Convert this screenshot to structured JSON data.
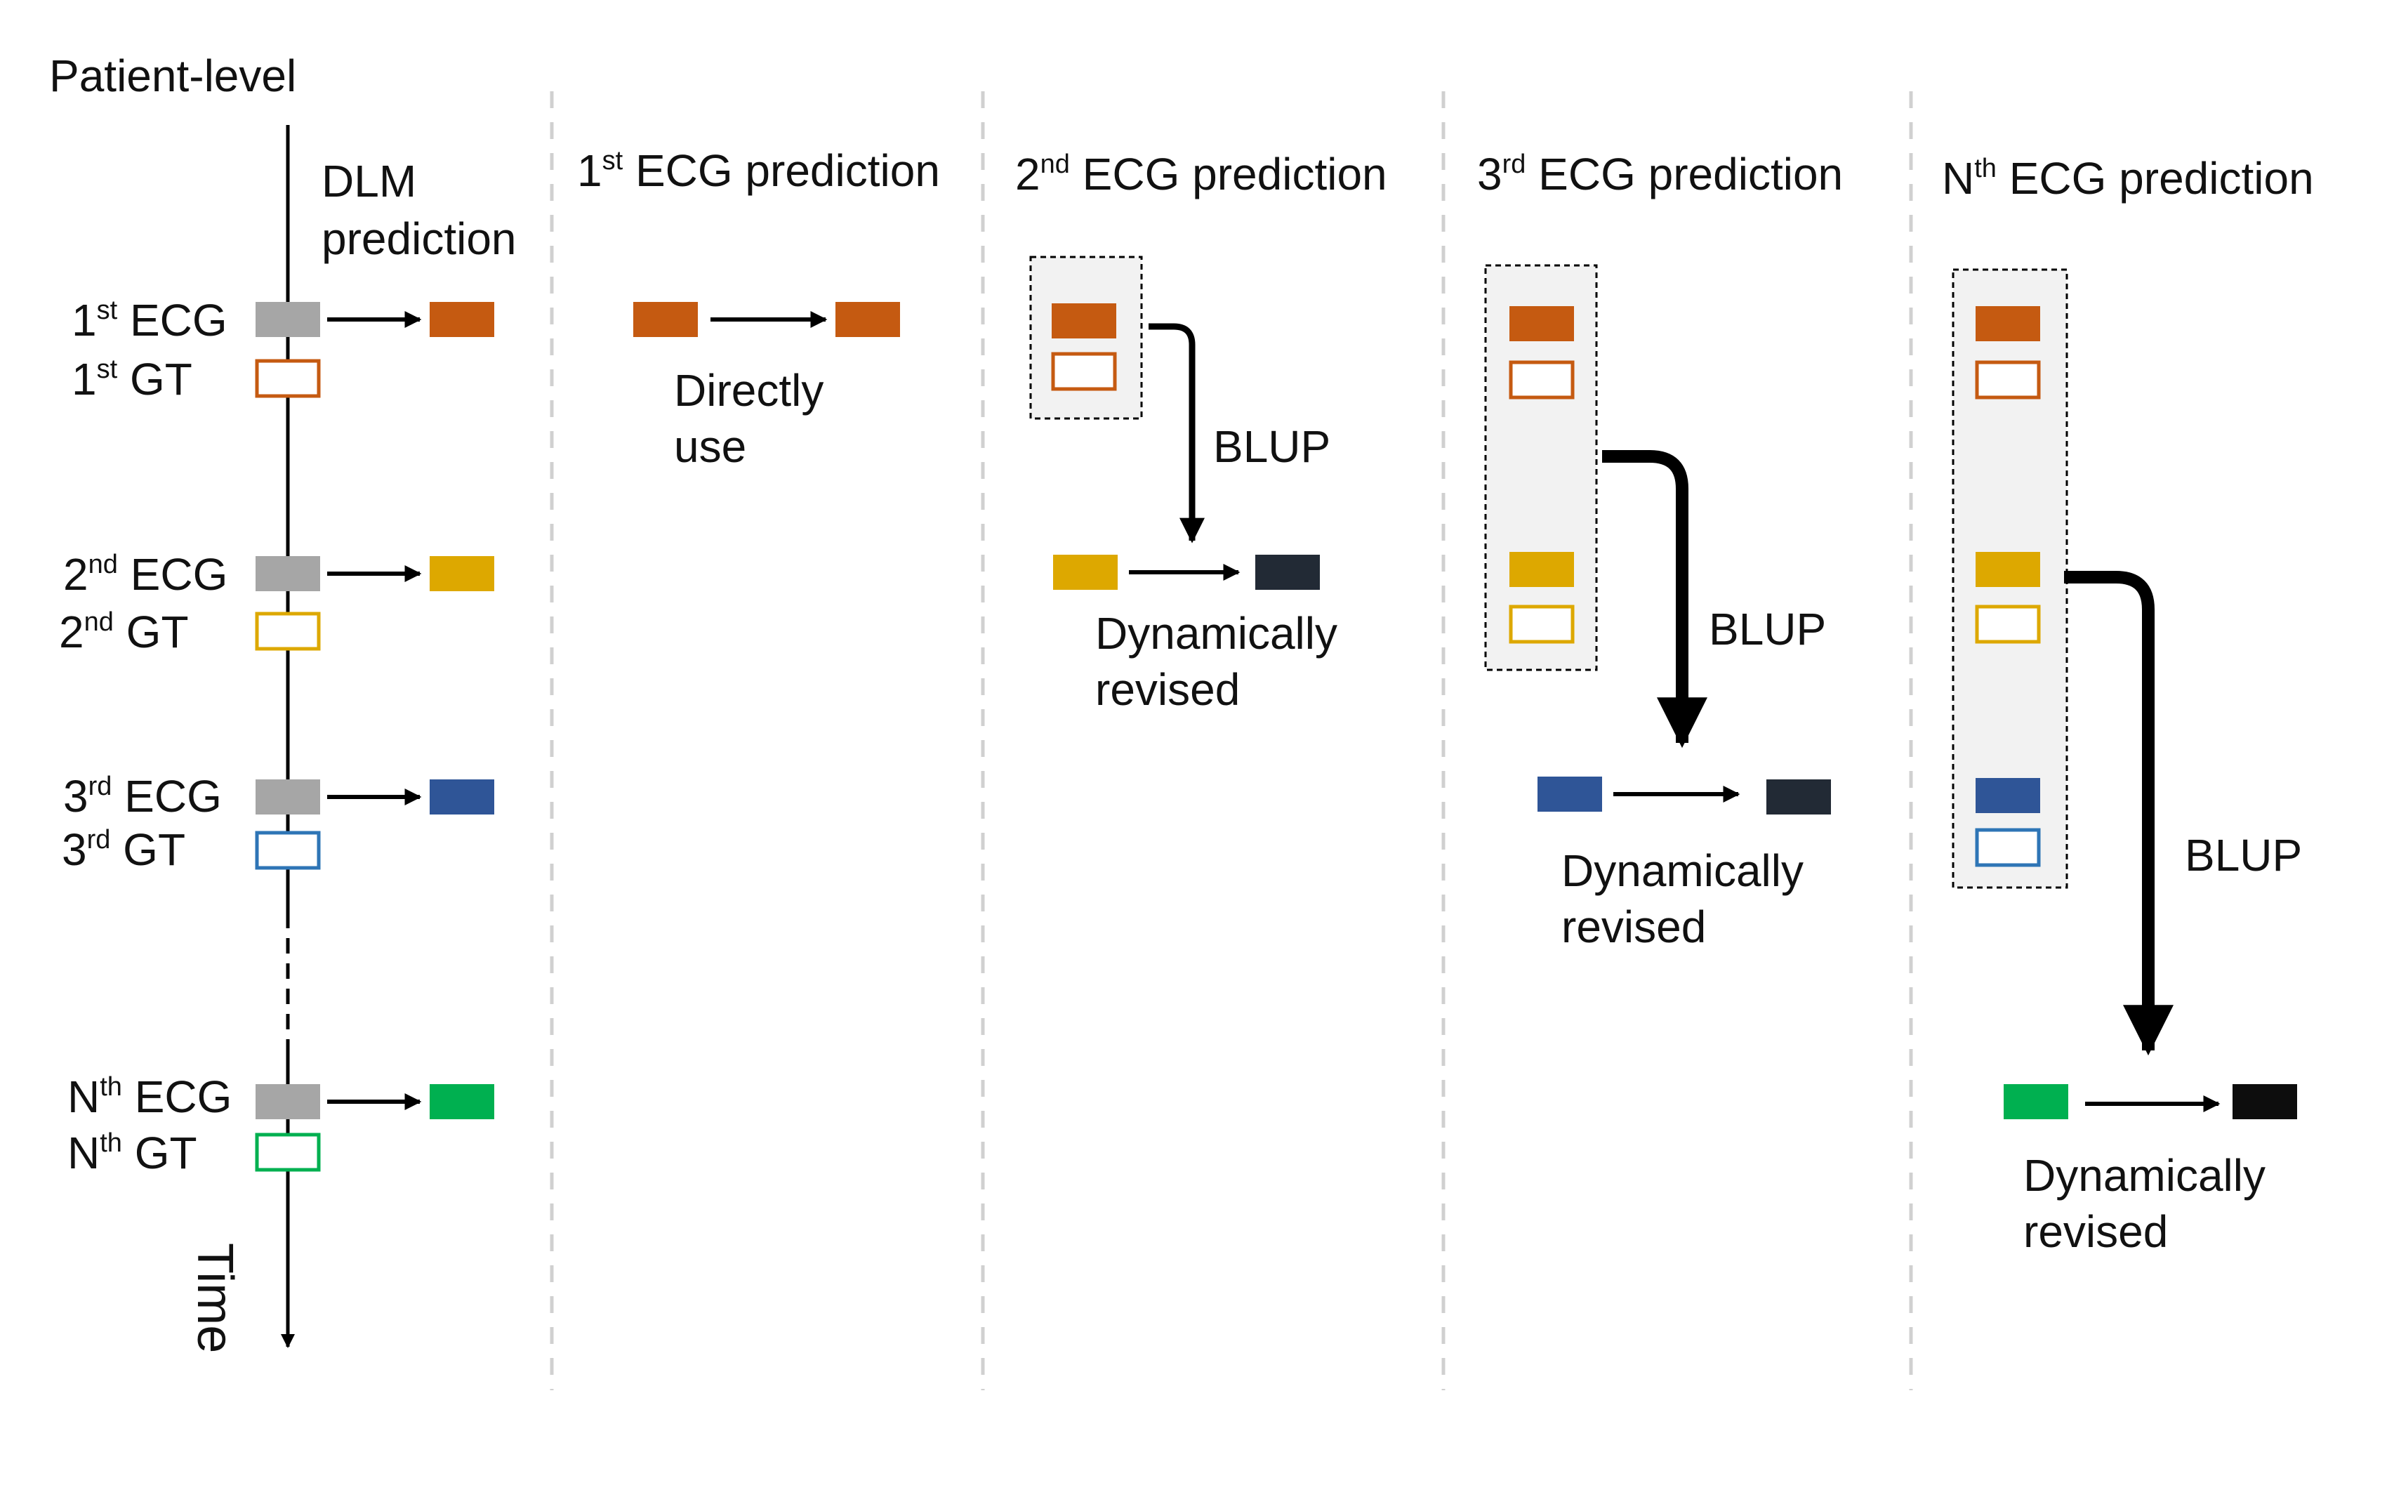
{
  "colors": {
    "ecg_gray": "#a6a6a6",
    "first": "#c55a11",
    "second": "#dda800",
    "third": "#2f5597",
    "nth": "#00b050",
    "third_gt_outline": "#2e75b6",
    "revised_2": "#222a35",
    "revised_3": "#222a35",
    "revised_n": "#0d0d0d",
    "panel_fill": "#f2f2f2",
    "divider": "#d0d0d0",
    "text": "#111111"
  },
  "timeline": {
    "title": "Patient-level",
    "dlm_line1": "DLM",
    "dlm_line2": "prediction",
    "time_label": "Time",
    "rows": [
      {
        "ecg_prefix": "1",
        "ecg_sup": "st",
        "ecg_suffix": " ECG",
        "gt_prefix": "1",
        "gt_sup": "st",
        "gt_suffix": "  GT"
      },
      {
        "ecg_prefix": "2",
        "ecg_sup": "nd",
        "ecg_suffix": " ECG",
        "gt_prefix": "2",
        "gt_sup": "nd",
        "gt_suffix": "  GT"
      },
      {
        "ecg_prefix": "3",
        "ecg_sup": "rd",
        "ecg_suffix": " ECG",
        "gt_prefix": "3",
        "gt_sup": "rd",
        "gt_suffix": "  GT"
      },
      {
        "ecg_prefix": "N",
        "ecg_sup": "th",
        "ecg_suffix": " ECG",
        "gt_prefix": "N",
        "gt_sup": "th",
        "gt_suffix": "  GT"
      }
    ]
  },
  "columns": [
    {
      "prefix": "1",
      "sup": "st",
      "suffix": " ECG prediction",
      "note_line1": "Directly",
      "note_line2": "use"
    },
    {
      "prefix": "2",
      "sup": "nd",
      "suffix": " ECG prediction",
      "blup": "BLUP",
      "note_line1": "Dynamically",
      "note_line2": "revised"
    },
    {
      "prefix": "3",
      "sup": "rd",
      "suffix": " ECG prediction",
      "blup": "BLUP",
      "note_line1": "Dynamically",
      "note_line2": "revised"
    },
    {
      "prefix": "N",
      "sup": "th",
      "suffix": " ECG prediction",
      "blup": "BLUP",
      "note_line1": "Dynamically",
      "note_line2": "revised"
    }
  ]
}
